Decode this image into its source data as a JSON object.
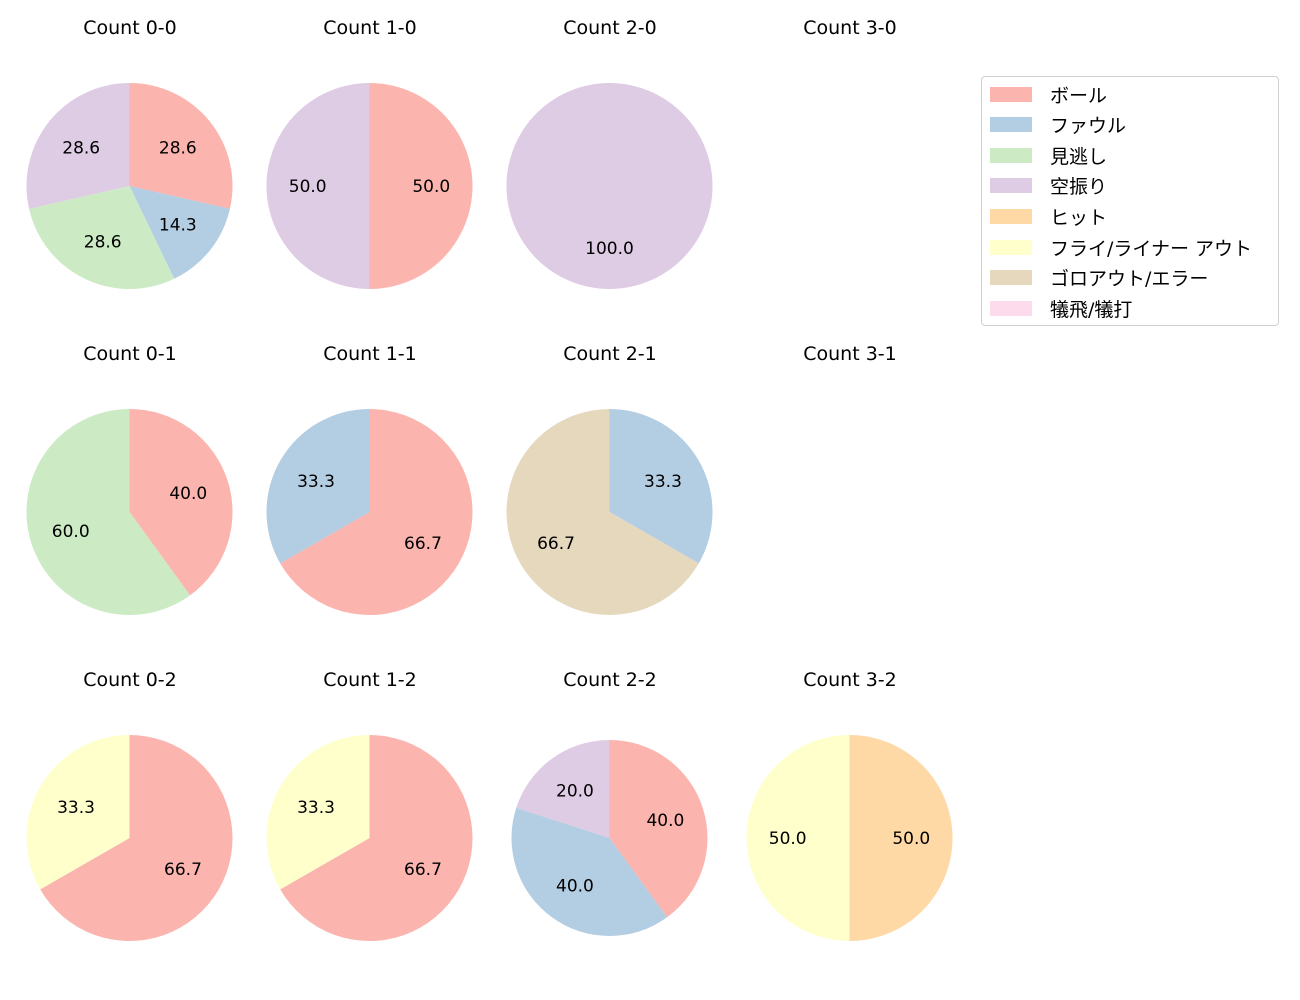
{
  "chart_data": {
    "type": "pie",
    "legend": {
      "position": "upper-right",
      "entries": [
        {
          "label": "ボール",
          "color": "#fbb4ae"
        },
        {
          "label": "ファウル",
          "color": "#b3cde3"
        },
        {
          "label": "見逃し",
          "color": "#ccebc5"
        },
        {
          "label": "空振り",
          "color": "#decbe4"
        },
        {
          "label": "ヒット",
          "color": "#fed9a6"
        },
        {
          "label": "フライ/ライナー アウト",
          "color": "#ffffcc"
        },
        {
          "label": "ゴロアウト/エラー",
          "color": "#e5d8bd"
        },
        {
          "label": "犠飛/犠打",
          "color": "#fddaec"
        }
      ]
    },
    "charts": [
      {
        "title": "Count 0-0",
        "row": 0,
        "col": 0,
        "slices": [
          {
            "label": "ボール",
            "value": 28.6
          },
          {
            "label": "ファウル",
            "value": 14.3
          },
          {
            "label": "見逃し",
            "value": 28.6
          },
          {
            "label": "空振り",
            "value": 28.6
          }
        ]
      },
      {
        "title": "Count 1-0",
        "row": 0,
        "col": 1,
        "slices": [
          {
            "label": "ボール",
            "value": 50.0
          },
          {
            "label": "空振り",
            "value": 50.0
          }
        ]
      },
      {
        "title": "Count 2-0",
        "row": 0,
        "col": 2,
        "slices": [
          {
            "label": "空振り",
            "value": 100.0
          }
        ]
      },
      {
        "title": "Count 3-0",
        "row": 0,
        "col": 3,
        "slices": []
      },
      {
        "title": "Count 0-1",
        "row": 1,
        "col": 0,
        "slices": [
          {
            "label": "ボール",
            "value": 40.0
          },
          {
            "label": "見逃し",
            "value": 60.0
          }
        ]
      },
      {
        "title": "Count 1-1",
        "row": 1,
        "col": 1,
        "slices": [
          {
            "label": "ボール",
            "value": 66.7
          },
          {
            "label": "ファウル",
            "value": 33.3
          }
        ]
      },
      {
        "title": "Count 2-1",
        "row": 1,
        "col": 2,
        "slices": [
          {
            "label": "ファウル",
            "value": 33.3
          },
          {
            "label": "ゴロアウト/エラー",
            "value": 66.7
          }
        ]
      },
      {
        "title": "Count 3-1",
        "row": 1,
        "col": 3,
        "slices": []
      },
      {
        "title": "Count 0-2",
        "row": 2,
        "col": 0,
        "slices": [
          {
            "label": "ボール",
            "value": 66.7
          },
          {
            "label": "フライ/ライナー アウト",
            "value": 33.3
          }
        ]
      },
      {
        "title": "Count 1-2",
        "row": 2,
        "col": 1,
        "slices": [
          {
            "label": "ボール",
            "value": 66.7
          },
          {
            "label": "フライ/ライナー アウト",
            "value": 33.3
          }
        ]
      },
      {
        "title": "Count 2-2",
        "row": 2,
        "col": 2,
        "radius": 98,
        "slices": [
          {
            "label": "ボール",
            "value": 40.0
          },
          {
            "label": "ファウル",
            "value": 40.0
          },
          {
            "label": "空振り",
            "value": 20.0
          }
        ]
      },
      {
        "title": "Count 3-2",
        "row": 2,
        "col": 3,
        "slices": [
          {
            "label": "ヒット",
            "value": 50.0
          },
          {
            "label": "フライ/ライナー アウト",
            "value": 50.0
          }
        ]
      }
    ],
    "layout": {
      "start_angle": "12 o'clock",
      "direction": "clockwise",
      "label_format": "%.1f"
    }
  }
}
